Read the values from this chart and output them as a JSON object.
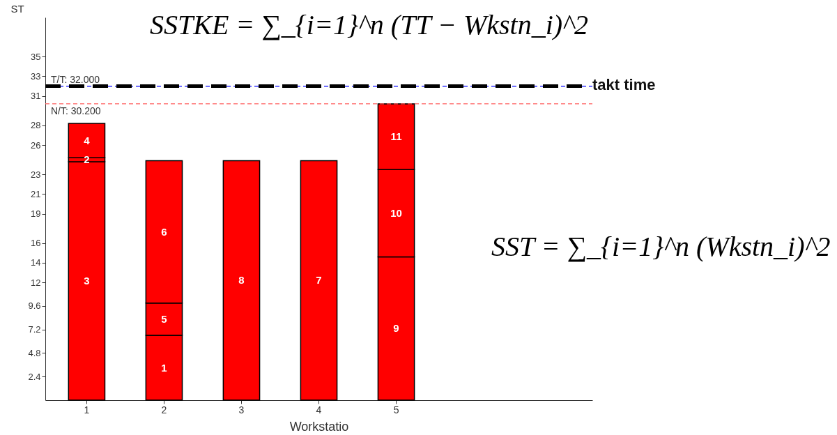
{
  "chart_data": {
    "type": "bar",
    "stacked": true,
    "categories": [
      "1",
      "2",
      "3",
      "4",
      "5"
    ],
    "xlabel": "Workstatio",
    "ylabel": "ST",
    "ylim": [
      0,
      39
    ],
    "yticks": [
      2.4,
      4.8,
      7.2,
      9.6,
      12,
      14,
      16,
      19,
      21,
      23,
      26,
      28,
      31,
      33,
      35
    ],
    "series": [
      {
        "color": "#ff0000",
        "values": [
          24.3,
          6.6,
          24.4,
          24.4,
          14.6
        ]
      },
      {
        "color": "#ff0000",
        "values": [
          0.4,
          3.3,
          null,
          null,
          8.9
        ]
      },
      {
        "color": "#ff0000",
        "values": [
          3.5,
          14.5,
          null,
          null,
          6.7
        ]
      }
    ],
    "ref_lines": [
      {
        "axis": "y",
        "value": 32,
        "label": "T/T: 32.000",
        "color": "#0000ff",
        "line_style": "dashed"
      },
      {
        "axis": "y",
        "value": 30.2,
        "label": "N/T: 30.200",
        "color": "#ff6060",
        "line_style": "dashed"
      },
      {
        "axis": "y",
        "value": 32,
        "label": "takt time",
        "color": "#000000",
        "line_style": "dashed"
      }
    ],
    "annotations": [
      "SSTKE = ∑_{i=1}^n (TT − Wkstn_i)^2",
      "SST = ∑_{i=1}^n (Wkstn_i)^2",
      "3",
      "1",
      "8",
      "7",
      "9",
      "2",
      "5",
      "10",
      "4",
      "6",
      "11"
    ],
    "grid": false
  }
}
